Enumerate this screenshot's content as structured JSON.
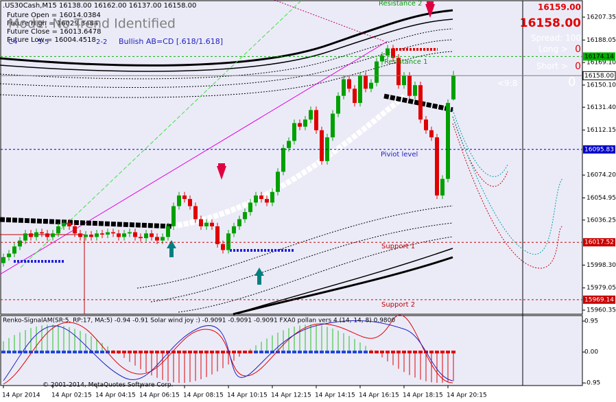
{
  "header": {
    "symbol_line": ".US30Cash,M15  16138.00 16162.00 16137.00 16158.00",
    "future_open": "Future Open = 16014.0384",
    "future_high": "Future High = 16029.3484",
    "future_close": "Future Close = 16013.6478",
    "future_low": "Future Low = 16004.4518",
    "mode": "Mode: No Trend Identified",
    "wave_a": "C4",
    "wave_b": "5-5",
    "wave_c": "2-2",
    "pattern": "Bullish AB=CD [.618/1.618]"
  },
  "info_panel": {
    "ask": "16159.00",
    "bid": "16158.00",
    "spread": "Spread: 100",
    "long": "Long >",
    "long_value": "0",
    "short": "Short >",
    "short_value": "0",
    "ratio": "<9:8",
    "count": "0"
  },
  "footer": "© 2001-2014, MetaQuotes Software Corp.",
  "chart_data": [
    {
      "type": "candlestick",
      "up_color": "#00a000",
      "down_color": "#e00000",
      "ylim": [
        15956.9,
        16221.8
      ],
      "yticks": [
        16207.35,
        {
          "value": 16188.05,
          "label": "16188.05"
        },
        {
          "value": 16169.1,
          "label": "16169.10"
        },
        {
          "value": 16150.1,
          "label": "16150.10"
        },
        {
          "value": 16131.4,
          "label": "16131.40"
        },
        16112.15,
        {
          "value": 16074.2,
          "label": "16074.20"
        },
        16054.95,
        16036.25,
        {
          "value": 15998.3,
          "label": "15998.30"
        },
        15979.05,
        15960.35
      ],
      "categories": [
        "14 Apr 2014",
        null,
        null,
        null,
        null,
        null,
        null,
        null,
        null,
        "14 Apr 02:15",
        null,
        null,
        null,
        null,
        null,
        null,
        null,
        "14 Apr 04:15",
        null,
        null,
        null,
        null,
        null,
        null,
        null,
        "14 Apr 06:15",
        null,
        null,
        null,
        null,
        null,
        null,
        null,
        "14 Apr 08:15",
        null,
        null,
        null,
        null,
        null,
        null,
        null,
        "14 Apr 10:15",
        null,
        null,
        null,
        null,
        null,
        null,
        null,
        "14 Apr 12:15",
        null,
        null,
        null,
        null,
        null,
        null,
        null,
        "14 Apr 14:15",
        null,
        null,
        null,
        null,
        null,
        null,
        null,
        "14 Apr 16:15",
        null,
        null,
        null,
        null,
        null,
        null,
        null,
        "14 Apr 18:15",
        null,
        null,
        null,
        null,
        null,
        null,
        null,
        "14 Apr 20:15",
        null
      ],
      "open": [
        16000,
        16005,
        16008,
        16014,
        16019,
        16025,
        16022,
        16026,
        16025,
        16022,
        16025,
        16031,
        16034,
        16031,
        16025,
        16022,
        16024,
        16022,
        16025,
        16024,
        16026,
        16025,
        16022,
        16025,
        16026,
        16022,
        16021,
        16025,
        16022,
        16019,
        16022,
        16031,
        16048,
        16057,
        16054,
        16048,
        16037,
        16031,
        16034,
        16031,
        16016,
        16011,
        16025,
        16031,
        16037,
        16043,
        16051,
        16057,
        16054,
        16051,
        16060,
        16077,
        16097,
        16103,
        16118,
        16115,
        16121,
        16129,
        16112,
        16086,
        16106,
        16126,
        16141,
        16155,
        16147,
        16135,
        16158,
        16147,
        16152,
        16170,
        16175,
        16181,
        16173,
        16150,
        16158,
        16141,
        16150,
        16121,
        16112,
        16106,
        16057,
        16071,
        16138
      ],
      "high": [
        16008,
        16011,
        16017,
        16022,
        16028,
        16028,
        16029,
        16029,
        16028,
        16028,
        16034,
        16037,
        16037,
        16034,
        16028,
        16027,
        16027,
        16028,
        16028,
        16029,
        16029,
        16028,
        16028,
        16029,
        16029,
        16025,
        16028,
        16028,
        16025,
        16025,
        16034,
        16051,
        16060,
        16060,
        16057,
        16051,
        16040,
        16037,
        16037,
        16034,
        16019,
        16028,
        16034,
        16040,
        16046,
        16054,
        16060,
        16060,
        16057,
        16063,
        16080,
        16100,
        16106,
        16121,
        16121,
        16124,
        16132,
        16132,
        16115,
        16109,
        16129,
        16144,
        16158,
        16158,
        16150,
        16161,
        16161,
        16155,
        16173,
        16178,
        16184,
        16184,
        16176,
        16161,
        16161,
        16153,
        16153,
        16124,
        16115,
        16109,
        16074,
        16138,
        16162
      ],
      "low": [
        15997,
        16002,
        16005,
        16011,
        16016,
        16019,
        16019,
        16022,
        16019,
        16019,
        16022,
        16028,
        16028,
        16022,
        16019,
        16019,
        16019,
        16019,
        16021,
        16021,
        16022,
        16019,
        16019,
        16022,
        16019,
        16018,
        16018,
        16019,
        16016,
        16016,
        16019,
        16028,
        16045,
        16051,
        16045,
        16034,
        16028,
        16028,
        16028,
        16013,
        16008,
        16008,
        16022,
        16028,
        16034,
        16040,
        16048,
        16051,
        16048,
        16048,
        16057,
        16074,
        16094,
        16100,
        16112,
        16112,
        16118,
        16109,
        16083,
        16083,
        16103,
        16123,
        16138,
        16144,
        16132,
        16132,
        16144,
        16144,
        16149,
        16167,
        16172,
        16170,
        16147,
        16147,
        16138,
        16138,
        16118,
        16109,
        16103,
        16054,
        16054,
        16068,
        16137
      ],
      "close": [
        16005,
        16008,
        16014,
        16019,
        16025,
        16022,
        16026,
        16025,
        16022,
        16025,
        16031,
        16034,
        16031,
        16025,
        16022,
        16024,
        16022,
        16025,
        16024,
        16026,
        16025,
        16022,
        16025,
        16026,
        16022,
        16021,
        16025,
        16022,
        16019,
        16022,
        16031,
        16048,
        16057,
        16054,
        16048,
        16037,
        16031,
        16034,
        16031,
        16016,
        16011,
        16025,
        16031,
        16037,
        16043,
        16051,
        16057,
        16054,
        16051,
        16060,
        16077,
        16097,
        16103,
        16118,
        16115,
        16121,
        16129,
        16112,
        16086,
        16106,
        16126,
        16141,
        16155,
        16147,
        16135,
        16158,
        16147,
        16152,
        16170,
        16175,
        16181,
        16173,
        16150,
        16158,
        16141,
        16150,
        16121,
        16112,
        16106,
        16057,
        16071,
        16135,
        16158
      ],
      "levels": [
        {
          "value": 16174.14,
          "color": "#00b000",
          "text_color": "#000000"
        },
        {
          "value": 16158,
          "value_label": "16158.00",
          "color": "#808080",
          "text_color": "#000000"
        },
        {
          "value": 16095.83,
          "color": "#0000c8",
          "text_color": "#ffffff"
        },
        {
          "value": 16017.52,
          "color": "#c80000",
          "text_color": "#ffffff"
        },
        {
          "value": 15969.14,
          "color": "#c80000",
          "text_color": "#ffffff"
        }
      ],
      "annotations": [
        "Resistance 2",
        "Resistance 1",
        "Piviot level",
        "Support 1",
        "Support 2"
      ]
    },
    {
      "type": "indicator",
      "title": "Renko-SignalAM(SR:5, RP:17, MA:5) -0.94 -0.91  Solar wind joy :) -0.9091 -0.9091 -0.9091  FXA0 pollan vers 4 (14, 14, 8) 0.9800",
      "ylim": [
        -1.03,
        1.12
      ],
      "yticks": [
        0.95,
        {
          "value": 0,
          "label": "0.00"
        },
        -0.95
      ]
    }
  ]
}
